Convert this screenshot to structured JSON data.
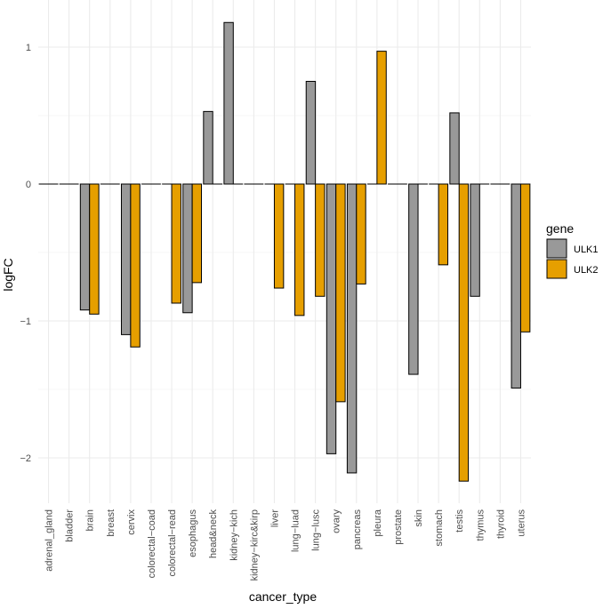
{
  "chart_data": {
    "type": "bar",
    "xlabel": "cancer_type",
    "ylabel": "logFC",
    "ylim": [
      -2.33,
      1.36
    ],
    "yticks": [
      -2,
      -1,
      0,
      1
    ],
    "grid": true,
    "legend": {
      "title": "gene",
      "position": "right"
    },
    "categories": [
      "adrenal_gland",
      "bladder",
      "brain",
      "breast",
      "cervix",
      "colorectal−coad",
      "colorectal−read",
      "esophagus",
      "head&neck",
      "kidney−kich",
      "kidney−kirc&kirp",
      "liver",
      "lung−luad",
      "lung−lusc",
      "ovary",
      "pancreas",
      "pleura",
      "prostate",
      "skin",
      "stomach",
      "testis",
      "thymus",
      "thyroid",
      "uterus"
    ],
    "series": [
      {
        "name": "ULK1",
        "color": "#999999",
        "values": [
          0,
          0,
          -0.92,
          0,
          -1.1,
          0,
          0,
          -0.94,
          0.53,
          1.18,
          0,
          0,
          0,
          0.75,
          -1.97,
          -2.11,
          0,
          0,
          -1.39,
          0,
          0.52,
          -0.82,
          0,
          -1.49
        ]
      },
      {
        "name": "ULK2",
        "color": "#E69F00",
        "values": [
          0,
          0,
          -0.95,
          0,
          -1.19,
          0,
          -0.87,
          -0.72,
          0,
          0,
          0,
          -0.76,
          -0.96,
          -0.82,
          -1.59,
          -0.73,
          0.97,
          0,
          0,
          -0.59,
          -2.17,
          0,
          0,
          -1.08
        ]
      }
    ]
  }
}
